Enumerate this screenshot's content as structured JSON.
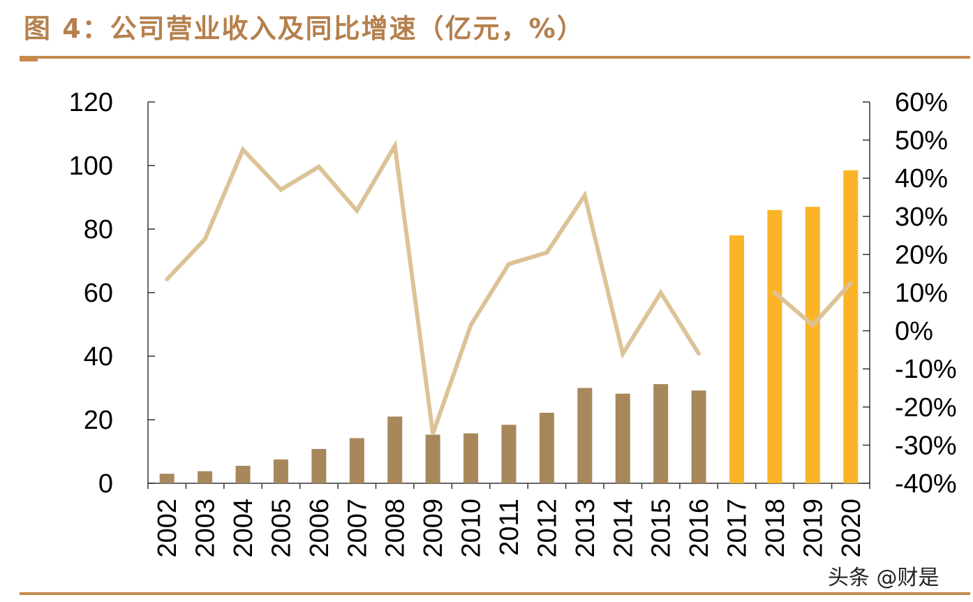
{
  "title": "图 4：公司营业收入及同比增速（亿元，%）",
  "watermark": "头条 @财是",
  "colors": {
    "rule": "#c58a4e",
    "title": "#b5804d",
    "bar_actual": "#a8875b",
    "bar_forecast": "#fbb428",
    "line": "#dcc396"
  },
  "chart_data": {
    "type": "bar",
    "categories": [
      "2002",
      "2003",
      "2004",
      "2005",
      "2006",
      "2007",
      "2008",
      "2009",
      "2010",
      "2011",
      "2012",
      "2013",
      "2014",
      "2015",
      "2016",
      "2017",
      "2018",
      "2019",
      "2020"
    ],
    "series": [
      {
        "axis": "left",
        "kind": "bar",
        "values": [
          3,
          3.8,
          5.5,
          7.5,
          10.8,
          14.2,
          21,
          15.3,
          15.7,
          18.4,
          22.2,
          30,
          28.2,
          31.2,
          29.2,
          78,
          86,
          87,
          98.5
        ],
        "forecast_from_index": 15
      },
      {
        "axis": "right",
        "kind": "line",
        "values": [
          13.5,
          24,
          47.5,
          37,
          43,
          31.5,
          48.5,
          -27,
          1.5,
          17.5,
          20.5,
          35.5,
          -6,
          10,
          -6,
          null,
          10,
          1.5,
          12.5
        ]
      }
    ],
    "left_axis": {
      "ylim": [
        0,
        120
      ],
      "ticks": [
        "0",
        "20",
        "40",
        "60",
        "80",
        "100",
        "120"
      ]
    },
    "right_axis": {
      "ylim": [
        -40,
        60
      ],
      "ticks": [
        "-40%",
        "-30%",
        "-20%",
        "-10%",
        "0%",
        "10%",
        "20%",
        "30%",
        "40%",
        "50%",
        "60%"
      ]
    },
    "grid": false,
    "legend": "none"
  }
}
